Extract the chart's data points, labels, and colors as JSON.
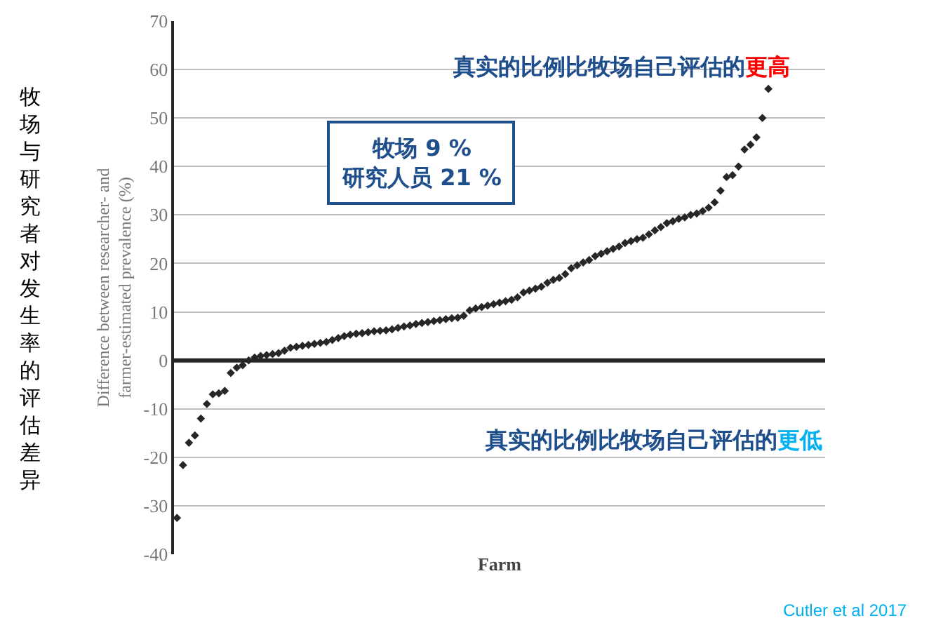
{
  "chart_data": {
    "type": "scatter",
    "xlabel": "Farm",
    "ylabel": "Difference between researcher- and\nfarmer-estimated prevalence (%)",
    "categories": [
      null,
      null,
      null,
      null,
      null,
      null,
      null,
      null,
      null,
      null,
      null,
      null,
      null,
      null,
      null,
      null,
      null,
      null,
      null,
      null,
      null,
      null,
      null,
      null,
      null,
      null,
      null,
      null,
      null,
      null,
      null,
      null,
      null,
      null,
      null,
      null,
      null,
      null,
      null,
      null,
      null,
      null,
      null,
      null,
      null,
      null,
      null,
      null,
      null,
      null,
      null,
      null,
      null,
      null,
      null,
      null,
      null,
      null,
      null,
      null,
      null,
      null,
      null,
      null,
      null,
      null,
      null,
      null,
      null,
      null,
      null,
      null,
      null,
      null,
      null,
      null,
      null,
      null,
      null,
      null,
      null,
      null,
      null,
      null,
      null,
      null,
      null,
      null,
      null,
      null,
      null,
      null,
      null,
      null,
      null,
      null,
      null,
      null,
      null,
      null,
      null,
      null,
      null,
      null,
      null,
      null,
      null,
      null,
      null
    ],
    "series": [
      {
        "color": "#262626",
        "values": [
          -32.5,
          -21.6,
          -17,
          -15.5,
          -12,
          -9,
          -7,
          -6.8,
          -6.3,
          -2.6,
          -1.5,
          -1,
          0,
          0.6,
          0.9,
          1.1,
          1.3,
          1.5,
          2,
          2.6,
          2.8,
          3,
          3.2,
          3.4,
          3.6,
          3.8,
          4.2,
          4.6,
          5,
          5.3,
          5.5,
          5.6,
          5.8,
          6,
          6.1,
          6.2,
          6.4,
          6.7,
          7,
          7.2,
          7.5,
          7.7,
          7.9,
          8.1,
          8.3,
          8.5,
          8.7,
          8.8,
          9.2,
          10.3,
          10.7,
          11,
          11.3,
          11.6,
          11.9,
          12.2,
          12.5,
          13,
          14,
          14.4,
          14.8,
          15.2,
          16,
          16.6,
          17,
          17.8,
          19,
          19.6,
          20.2,
          20.7,
          21.5,
          22,
          22.5,
          23,
          23.5,
          24.2,
          24.6,
          25,
          25.3,
          26,
          26.8,
          27.5,
          28.3,
          28.7,
          29.2,
          29.5,
          30,
          30.3,
          30.8,
          31.5,
          32.6,
          35,
          37.8,
          38.2,
          40,
          43.5,
          44.5,
          46,
          50,
          56,
          null,
          null,
          null,
          null,
          null,
          null,
          null,
          null,
          null
        ]
      }
    ],
    "ylim": [
      -40,
      70
    ],
    "yticks": [
      -40,
      -30,
      -20,
      -10,
      0,
      10,
      20,
      30,
      40,
      50,
      60,
      70
    ],
    "ref_lines": [
      {
        "axis": "y",
        "value": 0,
        "color": "#262626"
      }
    ],
    "annotations": [
      "真实的比例比牧场自己评估的更高",
      "牧场 9 %\n研究人员 21 %",
      "真实的比例比牧场自己评估的更低",
      "牧场与研究者对发生率的评估差异",
      "Cutler et al 2017"
    ],
    "grid": "y",
    "marker": "diamond"
  }
}
